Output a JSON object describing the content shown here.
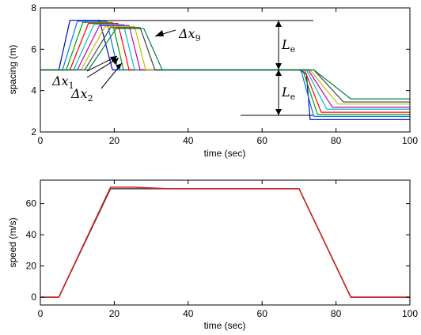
{
  "chart_data": [
    {
      "type": "line",
      "xlabel": "time (sec)",
      "ylabel": "spacing (m)",
      "xlim": [
        0,
        100
      ],
      "ylim": [
        2,
        8
      ],
      "xticks": [
        "0",
        "20",
        "40",
        "60",
        "80",
        "100"
      ],
      "yticks": [
        "2",
        "4",
        "6",
        "8"
      ],
      "grid": false,
      "series_colors": [
        "#0000c8",
        "#0072ff",
        "#00a000",
        "#ff0000",
        "#00bfbf",
        "#bf00bf",
        "#c0c000",
        "#404040",
        "#008040"
      ],
      "annotations": [
        {
          "text": "Δx",
          "sub": "9"
        },
        {
          "text": "Δx",
          "sub": "1"
        },
        {
          "text": "Δx",
          "sub": "2"
        },
        {
          "text": "L",
          "sub": "e"
        },
        {
          "text": "L",
          "sub": "e"
        }
      ],
      "series": [
        {
          "values": [
            [
              0,
              5
            ],
            [
              5,
              5
            ],
            [
              8,
              7.4
            ],
            [
              16,
              7.4
            ],
            [
              19.5,
              5
            ],
            [
              70,
              5
            ],
            [
              72,
              4.8
            ],
            [
              73,
              2.6
            ],
            [
              100,
              2.6
            ]
          ]
        },
        {
          "values": [
            [
              0,
              5
            ],
            [
              6,
              5
            ],
            [
              10,
              7.35
            ],
            [
              18,
              7.35
            ],
            [
              21,
              5
            ],
            [
              70.5,
              5
            ],
            [
              74,
              2.75
            ],
            [
              100,
              2.75
            ]
          ]
        },
        {
          "values": [
            [
              0,
              5
            ],
            [
              7,
              5
            ],
            [
              11.5,
              7.3
            ],
            [
              19.5,
              7.3
            ],
            [
              22.5,
              5
            ],
            [
              71,
              5
            ],
            [
              75,
              2.85
            ],
            [
              100,
              2.85
            ]
          ]
        },
        {
          "values": [
            [
              0,
              5
            ],
            [
              8,
              5
            ],
            [
              13,
              7.25
            ],
            [
              21,
              7.25
            ],
            [
              24,
              5
            ],
            [
              71.5,
              5
            ],
            [
              76,
              2.95
            ],
            [
              100,
              2.95
            ]
          ]
        },
        {
          "values": [
            [
              0,
              5
            ],
            [
              9,
              5
            ],
            [
              14.5,
              7.2
            ],
            [
              22.5,
              7.2
            ],
            [
              25.5,
              5
            ],
            [
              72,
              5
            ],
            [
              77.5,
              3.1
            ],
            [
              100,
              3.1
            ]
          ]
        },
        {
          "values": [
            [
              0,
              5
            ],
            [
              10,
              5
            ],
            [
              16,
              7.15
            ],
            [
              24,
              7.15
            ],
            [
              27,
              5
            ],
            [
              72.5,
              5
            ],
            [
              79,
              3.2
            ],
            [
              100,
              3.2
            ]
          ]
        },
        {
          "values": [
            [
              0,
              5
            ],
            [
              11,
              5
            ],
            [
              17.5,
              7.1
            ],
            [
              25.5,
              7.1
            ],
            [
              28.5,
              5
            ],
            [
              73,
              5
            ],
            [
              80.5,
              3.35
            ],
            [
              100,
              3.35
            ]
          ]
        },
        {
          "values": [
            [
              0,
              5
            ],
            [
              12,
              5
            ],
            [
              19,
              7.05
            ],
            [
              27,
              7.05
            ],
            [
              31,
              5
            ],
            [
              74,
              5
            ],
            [
              82,
              3.45
            ],
            [
              100,
              3.45
            ]
          ]
        },
        {
          "values": [
            [
              0,
              5
            ],
            [
              13,
              5
            ],
            [
              20.5,
              7.0
            ],
            [
              28,
              7.0
            ],
            [
              33,
              5
            ],
            [
              74,
              5
            ],
            [
              84,
              3.6
            ],
            [
              100,
              3.6
            ]
          ]
        }
      ]
    },
    {
      "type": "line",
      "xlabel": "time (sec)",
      "ylabel": "speed (m/s)",
      "xlim": [
        0,
        100
      ],
      "ylim": [
        -5,
        75
      ],
      "xticks": [
        "0",
        "20",
        "40",
        "60",
        "80",
        "100"
      ],
      "yticks": [
        "0",
        "20",
        "40",
        "60"
      ],
      "grid": false,
      "series_colors": [
        "#404040",
        "#d02020"
      ],
      "series": [
        {
          "values": [
            [
              0,
              0
            ],
            [
              5,
              0
            ],
            [
              19,
              69.5
            ],
            [
              70,
              69.5
            ],
            [
              84,
              0
            ],
            [
              100,
              0
            ]
          ]
        },
        {
          "values": [
            [
              0,
              0
            ],
            [
              5,
              0
            ],
            [
              19,
              70.5
            ],
            [
              25,
              70.5
            ],
            [
              35,
              69.5
            ],
            [
              70,
              69.5
            ],
            [
              84,
              0
            ],
            [
              100,
              0
            ]
          ]
        }
      ]
    }
  ]
}
